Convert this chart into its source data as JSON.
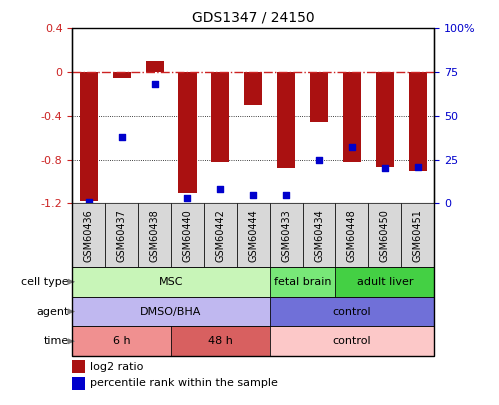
{
  "title": "GDS1347 / 24150",
  "samples": [
    "GSM60436",
    "GSM60437",
    "GSM60438",
    "GSM60440",
    "GSM60442",
    "GSM60444",
    "GSM60433",
    "GSM60434",
    "GSM60448",
    "GSM60450",
    "GSM60451"
  ],
  "log2_ratio": [
    -1.18,
    -0.05,
    0.1,
    -1.1,
    -0.82,
    -0.3,
    -0.88,
    -0.46,
    -0.82,
    -0.87,
    -0.9
  ],
  "percentile_rank": [
    1,
    38,
    68,
    3,
    8,
    5,
    5,
    25,
    32,
    20,
    21
  ],
  "ylim_left": [
    -1.2,
    0.4
  ],
  "ylim_right": [
    0,
    100
  ],
  "cell_type_groups": [
    {
      "label": "MSC",
      "start": 0,
      "end": 6,
      "color": "#c8f5b8"
    },
    {
      "label": "fetal brain",
      "start": 6,
      "end": 8,
      "color": "#78e878"
    },
    {
      "label": "adult liver",
      "start": 8,
      "end": 11,
      "color": "#44d044"
    }
  ],
  "agent_groups": [
    {
      "label": "DMSO/BHA",
      "start": 0,
      "end": 6,
      "color": "#c0b8f0"
    },
    {
      "label": "control",
      "start": 6,
      "end": 11,
      "color": "#7070d8"
    }
  ],
  "time_groups": [
    {
      "label": "6 h",
      "start": 0,
      "end": 3,
      "color": "#f09090"
    },
    {
      "label": "48 h",
      "start": 3,
      "end": 6,
      "color": "#d86060"
    },
    {
      "label": "control",
      "start": 6,
      "end": 11,
      "color": "#fcc8c8"
    }
  ],
  "bar_color": "#aa1111",
  "dot_color": "#0000cc",
  "ref_line_color": "#cc2222",
  "grid_color": "#555555",
  "row_labels": [
    "cell type",
    "agent",
    "time"
  ],
  "legend_labels": [
    "log2 ratio",
    "percentile rank within the sample"
  ],
  "legend_colors": [
    "#aa1111",
    "#0000cc"
  ],
  "label_fontsize": 8,
  "tick_fontsize": 8,
  "sample_fontsize": 7
}
